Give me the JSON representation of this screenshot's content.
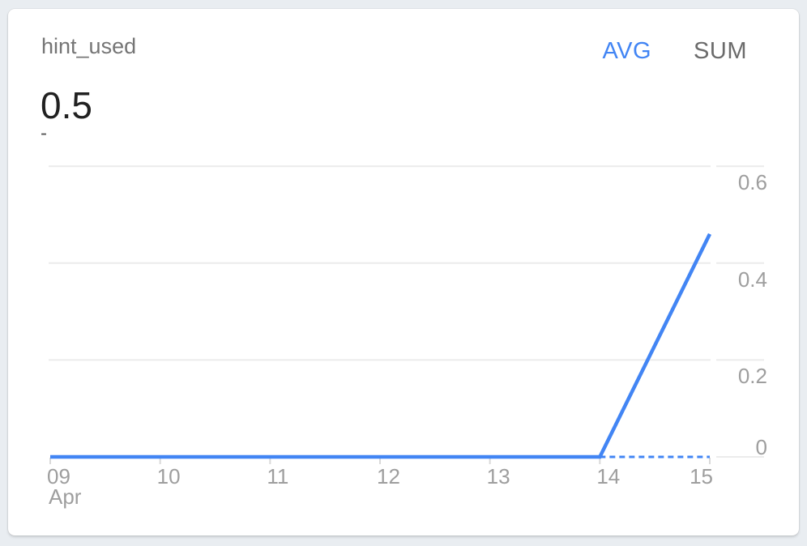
{
  "page": {
    "background_color": "#e9edf1"
  },
  "card": {
    "title": "hint_used",
    "metric_toggle": {
      "options": [
        {
          "label": "AVG",
          "selected": true
        },
        {
          "label": "SUM",
          "selected": false
        }
      ]
    },
    "primary_value": "0.5",
    "secondary_value": "-"
  },
  "colors": {
    "accent_blue": "#4285f4",
    "title_gray": "#757575",
    "primary_value_dark": "#212121",
    "axis_label_gray": "#9e9e9e",
    "gridline_gray": "#ebebeb",
    "tick_gray": "#d9d9d9",
    "toggle_unselected_gray": "#6b6b6b"
  },
  "chart_data": {
    "type": "line",
    "x": [
      "Apr 09",
      "Apr 10",
      "Apr 11",
      "Apr 12",
      "Apr 13",
      "Apr 14",
      "Apr 15"
    ],
    "x_tick_labels": [
      "09",
      "10",
      "11",
      "12",
      "13",
      "14",
      "15"
    ],
    "x_axis_sub_label": "Apr",
    "series": [
      {
        "name": "hint_used (AVG)",
        "color": "#4285f4",
        "values": [
          0,
          0,
          0,
          0,
          0,
          0,
          0.46
        ]
      }
    ],
    "dashed_baseline_segment": {
      "x_from": "Apr 14",
      "x_to": "Apr 15",
      "value": 0
    },
    "y_ticks": [
      0,
      0.2,
      0.4,
      0.6
    ],
    "y_tick_labels": [
      "0",
      "0.2",
      "0.4",
      "0.6"
    ],
    "ylim": [
      0,
      0.65
    ],
    "y_axis_side": "right",
    "grid": true,
    "legend": "none"
  }
}
